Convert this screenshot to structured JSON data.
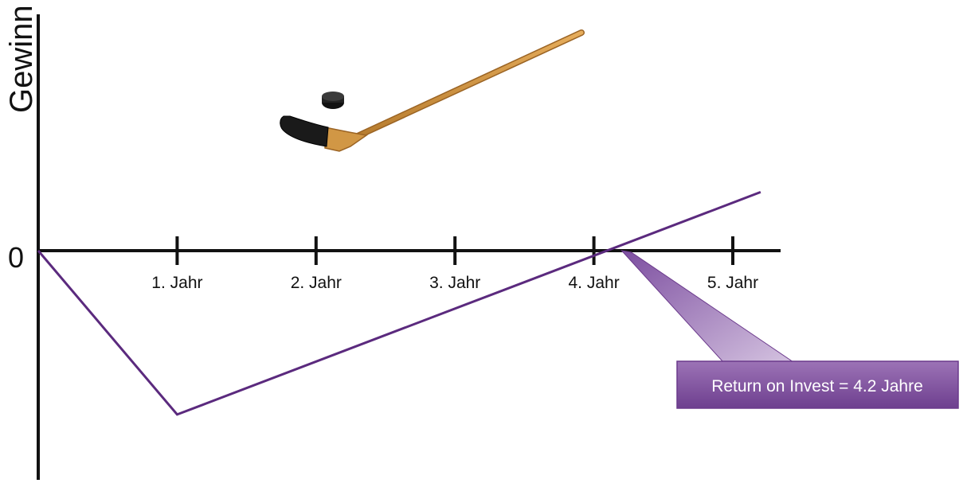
{
  "chart_data": {
    "type": "line",
    "ylabel": "Gewinn",
    "xlabel": "",
    "zero_label": "0",
    "categories": [
      "1. Jahr",
      "2. Jahr",
      "3. Jahr",
      "4. Jahr",
      "5. Jahr"
    ],
    "x_range": [
      0,
      5.2
    ],
    "y_range": [
      -1.6,
      2.2
    ],
    "series": [
      {
        "x": [
          0,
          1,
          5.2
        ],
        "y": [
          0,
          -1.4,
          0.5
        ]
      }
    ],
    "annotation": {
      "text": "Return on Invest = 4.2 Jahre",
      "x": 4.2,
      "y": 0
    },
    "colors": {
      "line": "#5b2a7e",
      "axis": "#111111",
      "callout_fill": "#8a5aa6",
      "callout_stroke": "#6b3a8c",
      "callout_text": "#ffffff"
    },
    "illustration": {
      "icon": "hockey-stick-icon",
      "puck_icon": "hockey-puck-icon"
    }
  }
}
